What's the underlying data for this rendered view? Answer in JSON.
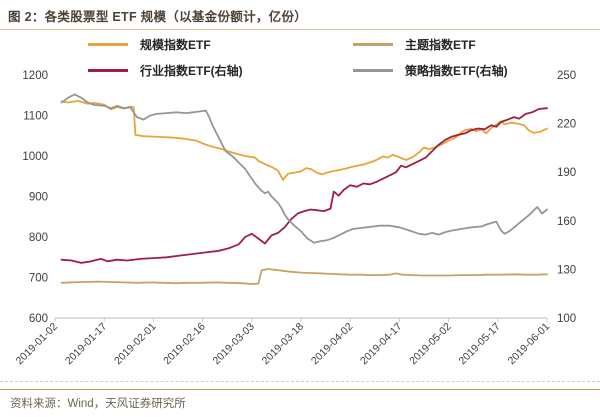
{
  "figure": {
    "title": "图 2：各类股票型 ETF 规模（以基金份额计，亿份）",
    "source": "资料来源：Wind，天风证券研究所"
  },
  "colors": {
    "title_text": "#4e4237",
    "title_rule": "#d8c9a0",
    "bottom_rule": "#bfa267",
    "axis_line": "#c9c9c9",
    "axis_text": "#3f3f3f",
    "series_orange": "#eba239",
    "series_tan": "#c7a264",
    "series_crimson": "#a01e41",
    "series_gray": "#969696"
  },
  "chart_data": {
    "type": "line",
    "title": "各类股票型 ETF 规模（以基金份额计，亿份）",
    "grid": false,
    "legend_position": "top",
    "x_axis": {
      "span_days": 150,
      "tick_days": [
        0,
        15,
        30,
        45,
        60,
        75,
        90,
        105,
        120,
        135,
        150
      ],
      "tick_labels": [
        "2019-01-02",
        "2019-01-17",
        "2019-02-01",
        "2019-02-16",
        "2019-03-03",
        "2019-03-18",
        "2019-04-02",
        "2019-04-17",
        "2019-05-02",
        "2019-05-17",
        "2019-06-01"
      ]
    },
    "left_axis": {
      "min": 600,
      "max": 1200,
      "ticks": [
        600,
        700,
        800,
        900,
        1000,
        1100,
        1200
      ]
    },
    "right_axis": {
      "min": 100,
      "max": 250,
      "ticks": [
        100,
        130,
        160,
        190,
        220,
        250
      ]
    },
    "series": [
      {
        "name": "规模指数ETF",
        "axis": "left",
        "color": "#eba239",
        "points": [
          [
            2,
            1135
          ],
          [
            4,
            1132
          ],
          [
            7,
            1136
          ],
          [
            10,
            1129
          ],
          [
            12,
            1131
          ],
          [
            15,
            1127
          ],
          [
            17,
            1115
          ],
          [
            19,
            1121
          ],
          [
            21,
            1117
          ],
          [
            23,
            1122
          ],
          [
            24,
            1120
          ],
          [
            24.5,
            1052
          ],
          [
            27,
            1049
          ],
          [
            30,
            1048
          ],
          [
            32,
            1047
          ],
          [
            35,
            1046
          ],
          [
            38,
            1044
          ],
          [
            40,
            1042
          ],
          [
            43,
            1038
          ],
          [
            46,
            1028
          ],
          [
            48,
            1023
          ],
          [
            51,
            1017
          ],
          [
            53,
            1011
          ],
          [
            56,
            1004
          ],
          [
            58,
            1000
          ],
          [
            61,
            996
          ],
          [
            62,
            988
          ],
          [
            64,
            980
          ],
          [
            66,
            973
          ],
          [
            68,
            964
          ],
          [
            69.5,
            941
          ],
          [
            71,
            956
          ],
          [
            73,
            959
          ],
          [
            75,
            962
          ],
          [
            76.5,
            970
          ],
          [
            78,
            968
          ],
          [
            80,
            958
          ],
          [
            81.5,
            955
          ],
          [
            83,
            959
          ],
          [
            85,
            963
          ],
          [
            87,
            966
          ],
          [
            89,
            970
          ],
          [
            91,
            974
          ],
          [
            94,
            979
          ],
          [
            96,
            984
          ],
          [
            98,
            990
          ],
          [
            100,
            999
          ],
          [
            101.5,
            996
          ],
          [
            103,
            1003
          ],
          [
            105,
            997
          ],
          [
            107,
            990
          ],
          [
            109,
            997
          ],
          [
            111,
            1009
          ],
          [
            112.5,
            1021
          ],
          [
            114,
            1017
          ],
          [
            116,
            1022
          ],
          [
            118,
            1029
          ],
          [
            120,
            1038
          ],
          [
            122,
            1045
          ],
          [
            123.5,
            1056
          ],
          [
            125,
            1064
          ],
          [
            127,
            1067
          ],
          [
            128.5,
            1061
          ],
          [
            130,
            1066
          ],
          [
            131.5,
            1056
          ],
          [
            133,
            1069
          ],
          [
            136,
            1086
          ],
          [
            137,
            1078
          ],
          [
            139,
            1082
          ],
          [
            141,
            1080
          ],
          [
            143,
            1076
          ],
          [
            144.5,
            1063
          ],
          [
            146,
            1057
          ],
          [
            148,
            1060
          ],
          [
            150,
            1068
          ]
        ]
      },
      {
        "name": "主题指数ETF",
        "axis": "left",
        "color": "#c7a264",
        "points": [
          [
            2,
            687
          ],
          [
            5,
            688
          ],
          [
            9,
            689
          ],
          [
            13,
            690
          ],
          [
            17,
            689
          ],
          [
            21,
            688
          ],
          [
            25,
            687
          ],
          [
            29,
            688
          ],
          [
            33,
            687
          ],
          [
            37,
            686
          ],
          [
            41,
            687
          ],
          [
            45,
            687
          ],
          [
            49,
            688
          ],
          [
            53,
            687
          ],
          [
            57,
            686
          ],
          [
            60,
            684
          ],
          [
            62,
            685
          ],
          [
            63,
            718
          ],
          [
            65,
            721
          ],
          [
            67,
            719
          ],
          [
            70,
            716
          ],
          [
            72,
            714
          ],
          [
            75,
            712
          ],
          [
            78,
            711
          ],
          [
            81,
            710
          ],
          [
            84,
            709
          ],
          [
            87,
            708
          ],
          [
            90,
            707
          ],
          [
            93,
            707
          ],
          [
            96,
            706
          ],
          [
            99,
            706
          ],
          [
            102,
            707
          ],
          [
            104,
            710
          ],
          [
            106,
            707
          ],
          [
            109,
            706
          ],
          [
            112,
            705
          ],
          [
            116,
            705
          ],
          [
            120,
            705
          ],
          [
            124,
            706
          ],
          [
            128,
            706
          ],
          [
            132,
            707
          ],
          [
            136,
            707
          ],
          [
            140,
            708
          ],
          [
            144,
            707
          ],
          [
            147,
            707
          ],
          [
            150,
            708
          ]
        ]
      },
      {
        "name": "行业指数ETF(右轴)",
        "axis": "right",
        "color": "#a01e41",
        "points": [
          [
            2,
            136
          ],
          [
            5,
            135.5
          ],
          [
            8,
            134
          ],
          [
            11,
            135
          ],
          [
            14,
            136.5
          ],
          [
            16,
            135
          ],
          [
            19,
            136
          ],
          [
            22,
            135.5
          ],
          [
            26,
            136.5
          ],
          [
            30,
            137
          ],
          [
            34,
            137.5
          ],
          [
            38,
            138.5
          ],
          [
            42,
            139.5
          ],
          [
            46,
            140.5
          ],
          [
            50,
            141.5
          ],
          [
            53,
            143
          ],
          [
            56,
            145.5
          ],
          [
            58,
            150
          ],
          [
            60,
            152
          ],
          [
            62,
            149
          ],
          [
            64,
            146
          ],
          [
            66,
            151
          ],
          [
            68,
            152.5
          ],
          [
            70,
            156
          ],
          [
            72,
            161
          ],
          [
            74,
            164.5
          ],
          [
            76,
            166
          ],
          [
            78,
            167
          ],
          [
            80,
            166.5
          ],
          [
            82,
            166
          ],
          [
            84,
            167.5
          ],
          [
            85,
            178
          ],
          [
            86.5,
            175.5
          ],
          [
            88,
            179
          ],
          [
            90,
            182
          ],
          [
            92,
            181
          ],
          [
            94,
            183
          ],
          [
            96,
            182.5
          ],
          [
            98,
            184
          ],
          [
            100,
            186
          ],
          [
            102,
            188
          ],
          [
            104,
            190
          ],
          [
            105.5,
            194
          ],
          [
            107,
            193
          ],
          [
            109,
            195
          ],
          [
            111,
            197
          ],
          [
            113,
            199
          ],
          [
            115,
            203
          ],
          [
            117,
            207
          ],
          [
            119,
            210
          ],
          [
            121,
            212
          ],
          [
            123,
            213
          ],
          [
            125,
            214
          ],
          [
            127,
            216
          ],
          [
            129,
            217
          ],
          [
            131,
            216.5
          ],
          [
            133,
            219
          ],
          [
            134.5,
            218
          ],
          [
            136,
            221
          ],
          [
            138,
            222.5
          ],
          [
            140,
            224
          ],
          [
            141.5,
            223
          ],
          [
            143.5,
            226
          ],
          [
            145.5,
            227
          ],
          [
            147.5,
            229
          ],
          [
            150,
            229.5
          ]
        ]
      },
      {
        "name": "策略指数ETF(右轴)",
        "axis": "right",
        "color": "#969696",
        "points": [
          [
            2,
            233
          ],
          [
            4,
            236
          ],
          [
            6,
            238
          ],
          [
            8,
            236
          ],
          [
            10,
            233
          ],
          [
            12,
            231.5
          ],
          [
            15,
            231
          ],
          [
            17,
            229.5
          ],
          [
            19,
            231
          ],
          [
            21,
            229.5
          ],
          [
            23,
            230
          ],
          [
            25,
            224
          ],
          [
            27,
            222.5
          ],
          [
            29,
            225
          ],
          [
            31,
            226
          ],
          [
            34,
            226.5
          ],
          [
            37,
            227
          ],
          [
            40,
            226.5
          ],
          [
            42,
            227
          ],
          [
            44,
            227.5
          ],
          [
            46,
            228
          ],
          [
            47,
            224
          ],
          [
            48,
            219
          ],
          [
            49,
            215
          ],
          [
            50,
            211
          ],
          [
            51,
            207
          ],
          [
            52,
            203
          ],
          [
            54,
            200
          ],
          [
            55,
            198
          ],
          [
            56,
            196
          ],
          [
            58,
            192
          ],
          [
            60,
            186
          ],
          [
            61,
            183
          ],
          [
            63,
            178.5
          ],
          [
            64,
            177
          ],
          [
            65,
            178
          ],
          [
            66,
            175
          ],
          [
            68,
            171
          ],
          [
            69,
            168
          ],
          [
            70,
            164
          ],
          [
            71,
            161
          ],
          [
            73,
            157
          ],
          [
            75,
            153.5
          ],
          [
            77,
            149
          ],
          [
            79,
            146.5
          ],
          [
            81,
            147.5
          ],
          [
            83,
            148
          ],
          [
            85,
            149.5
          ],
          [
            87,
            151.5
          ],
          [
            89,
            153.5
          ],
          [
            91,
            155
          ],
          [
            93,
            155.5
          ],
          [
            95,
            156
          ],
          [
            97,
            156.5
          ],
          [
            99,
            157
          ],
          [
            102,
            157
          ],
          [
            105,
            156
          ],
          [
            108,
            154
          ],
          [
            111,
            152
          ],
          [
            113,
            151.5
          ],
          [
            115,
            152.5
          ],
          [
            117,
            151.5
          ],
          [
            119,
            153
          ],
          [
            121,
            154
          ],
          [
            124,
            155
          ],
          [
            127,
            156
          ],
          [
            130,
            156.5
          ],
          [
            132,
            158
          ],
          [
            134.5,
            159.5
          ],
          [
            136,
            154
          ],
          [
            137,
            152
          ],
          [
            138.5,
            153.5
          ],
          [
            140,
            156
          ],
          [
            141.5,
            158.5
          ],
          [
            143,
            161
          ],
          [
            144.5,
            163.5
          ],
          [
            146,
            166.5
          ],
          [
            147,
            168.5
          ],
          [
            148.5,
            164.5
          ],
          [
            150,
            167
          ]
        ]
      }
    ]
  }
}
